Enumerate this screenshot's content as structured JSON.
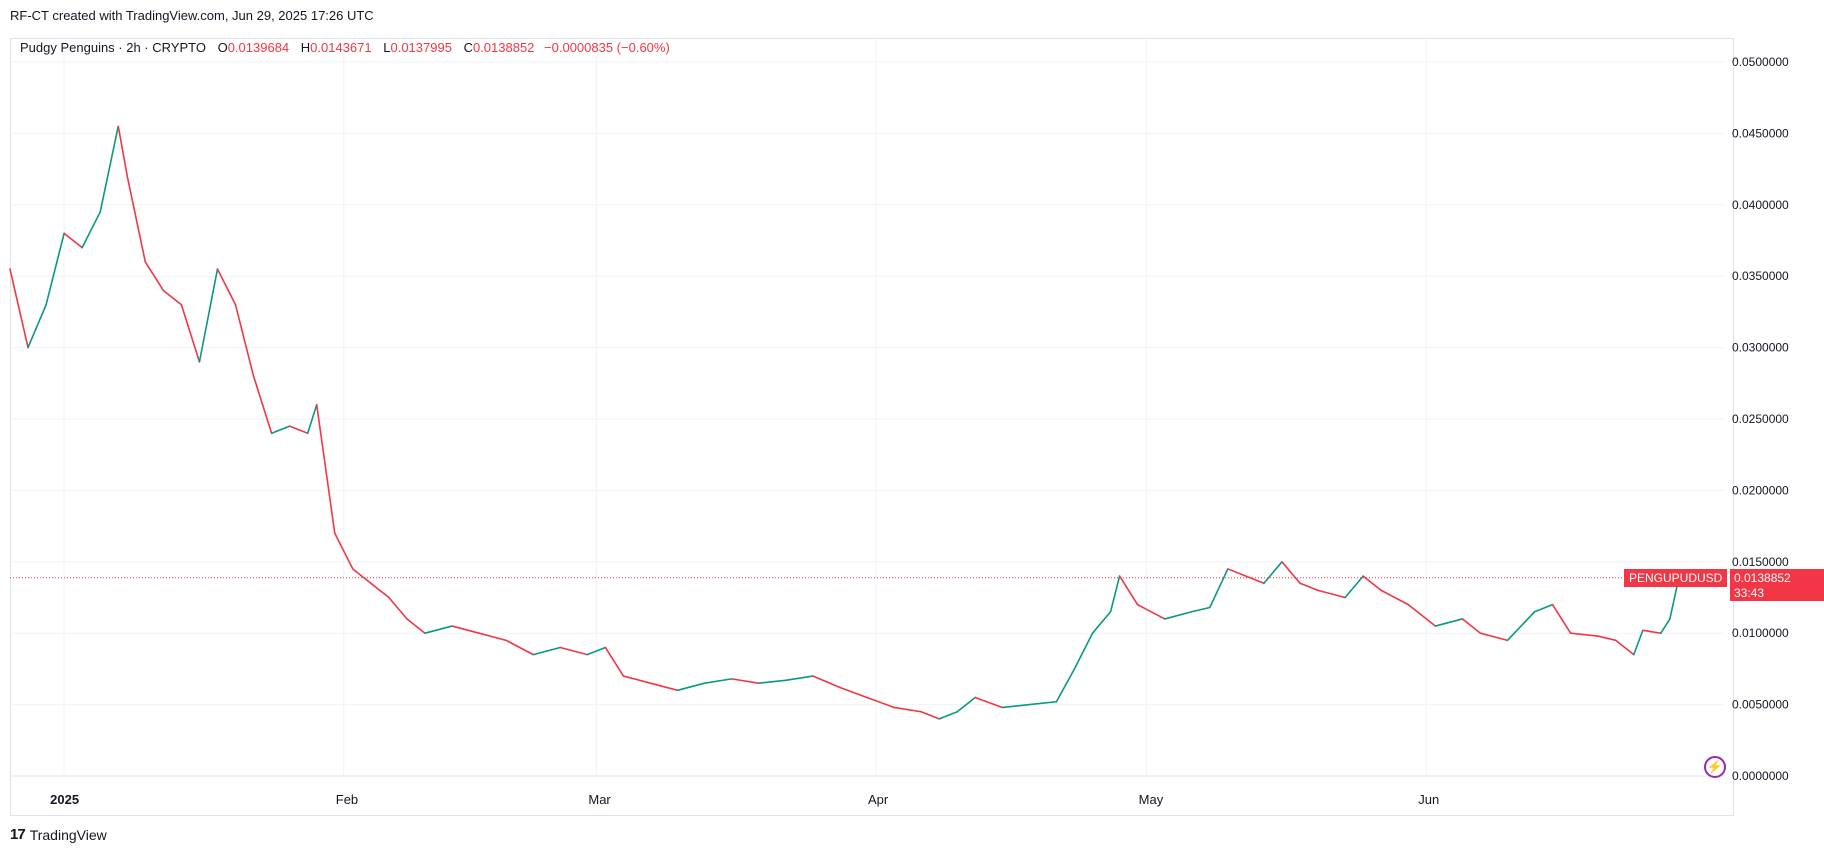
{
  "header": {
    "attribution": "RF-CT created with TradingView.com, Jun 29, 2025 17:26 UTC"
  },
  "legend": {
    "symbol_line": "Pudgy Penguins · 2h · CRYPTO",
    "o_label": "O",
    "o_value": "0.0139684",
    "h_label": "H",
    "h_value": "0.0143671",
    "l_label": "L",
    "l_value": "0.0137995",
    "c_label": "C",
    "c_value": "0.0138852",
    "change": "−0.0000835 (−0.60%)"
  },
  "price_tags": {
    "symbol": "PENGUPUDUSD",
    "last": "0.0138852",
    "countdown": "33:43"
  },
  "footer": {
    "logo_text": "TradingView",
    "logo_mark": "17"
  },
  "icons": {
    "bolt": "lightning-bolt-icon"
  },
  "colors": {
    "up": "#089981",
    "down": "#f23645",
    "grid": "#f0f3fa",
    "axis_text": "#131722"
  },
  "chart_data": {
    "type": "line",
    "title": "",
    "xlabel": "",
    "ylabel": "",
    "series": [
      {
        "name": "",
        "points": [
          [
            "2024-12-26",
            0.0355
          ],
          [
            "2024-12-28",
            0.03
          ],
          [
            "2024-12-30",
            0.033
          ],
          [
            "2025-01-01",
            0.038
          ],
          [
            "2025-01-03",
            0.037
          ],
          [
            "2025-01-05",
            0.0395
          ],
          [
            "2025-01-07",
            0.0455
          ],
          [
            "2025-01-08",
            0.042
          ],
          [
            "2025-01-10",
            0.036
          ],
          [
            "2025-01-12",
            0.034
          ],
          [
            "2025-01-14",
            0.033
          ],
          [
            "2025-01-16",
            0.029
          ],
          [
            "2025-01-18",
            0.0355
          ],
          [
            "2025-01-20",
            0.033
          ],
          [
            "2025-01-22",
            0.028
          ],
          [
            "2025-01-24",
            0.024
          ],
          [
            "2025-01-26",
            0.0245
          ],
          [
            "2025-01-28",
            0.024
          ],
          [
            "2025-01-29",
            0.026
          ],
          [
            "2025-01-31",
            0.017
          ],
          [
            "2025-02-02",
            0.0145
          ],
          [
            "2025-02-04",
            0.0135
          ],
          [
            "2025-02-06",
            0.0125
          ],
          [
            "2025-02-08",
            0.011
          ],
          [
            "2025-02-10",
            0.01
          ],
          [
            "2025-02-13",
            0.0105
          ],
          [
            "2025-02-16",
            0.01
          ],
          [
            "2025-02-19",
            0.0095
          ],
          [
            "2025-02-22",
            0.0085
          ],
          [
            "2025-02-25",
            0.009
          ],
          [
            "2025-02-28",
            0.0085
          ],
          [
            "2025-03-02",
            0.009
          ],
          [
            "2025-03-04",
            0.007
          ],
          [
            "2025-03-07",
            0.0065
          ],
          [
            "2025-03-10",
            0.006
          ],
          [
            "2025-03-13",
            0.0065
          ],
          [
            "2025-03-16",
            0.0068
          ],
          [
            "2025-03-19",
            0.0065
          ],
          [
            "2025-03-22",
            0.0067
          ],
          [
            "2025-03-25",
            0.007
          ],
          [
            "2025-03-28",
            0.0062
          ],
          [
            "2025-03-31",
            0.0055
          ],
          [
            "2025-04-03",
            0.0048
          ],
          [
            "2025-04-06",
            0.0045
          ],
          [
            "2025-04-08",
            0.004
          ],
          [
            "2025-04-10",
            0.0045
          ],
          [
            "2025-04-12",
            0.0055
          ],
          [
            "2025-04-15",
            0.0048
          ],
          [
            "2025-04-18",
            0.005
          ],
          [
            "2025-04-21",
            0.0052
          ],
          [
            "2025-04-23",
            0.0075
          ],
          [
            "2025-04-25",
            0.01
          ],
          [
            "2025-04-27",
            0.0115
          ],
          [
            "2025-04-28",
            0.014
          ],
          [
            "2025-04-30",
            0.012
          ],
          [
            "2025-05-03",
            0.011
          ],
          [
            "2025-05-06",
            0.0115
          ],
          [
            "2025-05-08",
            0.0118
          ],
          [
            "2025-05-10",
            0.0145
          ],
          [
            "2025-05-12",
            0.014
          ],
          [
            "2025-05-14",
            0.0135
          ],
          [
            "2025-05-16",
            0.015
          ],
          [
            "2025-05-18",
            0.0135
          ],
          [
            "2025-05-20",
            0.013
          ],
          [
            "2025-05-23",
            0.0125
          ],
          [
            "2025-05-25",
            0.014
          ],
          [
            "2025-05-27",
            0.013
          ],
          [
            "2025-05-30",
            0.012
          ],
          [
            "2025-06-02",
            0.0105
          ],
          [
            "2025-06-05",
            0.011
          ],
          [
            "2025-06-07",
            0.01
          ],
          [
            "2025-06-10",
            0.0095
          ],
          [
            "2025-06-13",
            0.0115
          ],
          [
            "2025-06-15",
            0.012
          ],
          [
            "2025-06-17",
            0.01
          ],
          [
            "2025-06-20",
            0.0098
          ],
          [
            "2025-06-22",
            0.0095
          ],
          [
            "2025-06-24",
            0.0085
          ],
          [
            "2025-06-25",
            0.0102
          ],
          [
            "2025-06-27",
            0.01
          ],
          [
            "2025-06-28",
            0.011
          ],
          [
            "2025-06-29",
            0.0139
          ]
        ]
      }
    ],
    "last_price": 0.0138852,
    "x_ticks": [
      {
        "label": "2025",
        "date": "2025-01-01",
        "bold": true
      },
      {
        "label": "Feb",
        "date": "2025-02-01"
      },
      {
        "label": "Mar",
        "date": "2025-03-01"
      },
      {
        "label": "Apr",
        "date": "2025-04-01"
      },
      {
        "label": "May",
        "date": "2025-05-01"
      },
      {
        "label": "Jun",
        "date": "2025-06-01"
      }
    ],
    "y_ticks": [
      "0.0500000",
      "0.0450000",
      "0.0400000",
      "0.0350000",
      "0.0300000",
      "0.0250000",
      "0.0200000",
      "0.0150000",
      "0.0100000",
      "0.0050000",
      "0.0000000"
    ],
    "ylim": [
      0,
      0.05
    ],
    "xlim": [
      "2024-12-26",
      "2025-07-04"
    ],
    "grid": true
  }
}
